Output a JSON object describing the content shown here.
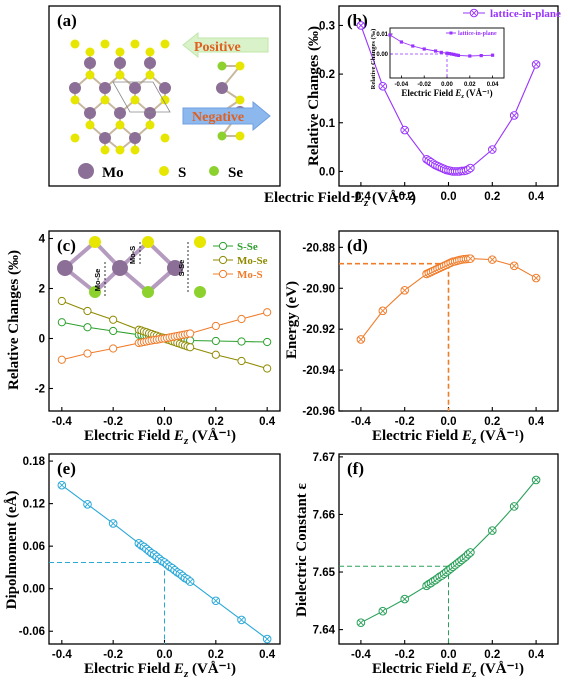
{
  "panels": {
    "a": {
      "letter": "(a)",
      "atom_labels": [
        "Mo",
        "S",
        "Se"
      ],
      "arrow_labels": [
        "Positive",
        "Negative"
      ]
    },
    "colors": {
      "purple": "#9933ff",
      "green": "#2ca02c",
      "olive": "#8f8a00",
      "orange": "#f07c2a",
      "cyan": "#29a8d8",
      "green2": "#2aa05a",
      "mo_atom": "#8c6f96",
      "s_atom": "#e6e600",
      "se_atom": "#8cd12e",
      "arrow_text": "#e06020"
    }
  },
  "chart_data": [
    {
      "id": "b",
      "letter": "(b)",
      "type": "line",
      "xlabel": "Electric Field E_z (VÅ⁻¹)",
      "ylabel": "Relative Changes (‰)",
      "xlim": [
        -0.5,
        0.5
      ],
      "ylim": [
        -0.03,
        0.34
      ],
      "xticks": [
        "-0.4",
        "-0.2",
        "0.0",
        "0.2",
        "0.4"
      ],
      "xtick_values": [
        -0.4,
        -0.2,
        0.0,
        0.2,
        0.4
      ],
      "yticks": [
        "0.0",
        "0.1",
        "0.2",
        "0.3"
      ],
      "ytick_values": [
        0.0,
        0.1,
        0.2,
        0.3
      ],
      "legend": "top-right",
      "series": [
        {
          "name": "lattice-in-plane",
          "color": "#9933ff",
          "x": [
            -0.4,
            -0.3,
            -0.2,
            -0.1,
            -0.09,
            -0.08,
            -0.07,
            -0.06,
            -0.05,
            -0.04,
            -0.03,
            -0.02,
            -0.01,
            0.0,
            0.01,
            0.02,
            0.03,
            0.04,
            0.05,
            0.06,
            0.07,
            0.08,
            0.09,
            0.1,
            0.2,
            0.3,
            0.4
          ],
          "y": [
            0.3,
            0.175,
            0.085,
            0.025,
            0.022,
            0.019,
            0.016,
            0.013,
            0.011,
            0.009,
            0.007,
            0.005,
            0.003,
            0.002,
            0.001,
            0.0,
            0.0,
            0.0,
            0.0,
            0.001,
            0.001,
            0.002,
            0.004,
            0.007,
            0.045,
            0.115,
            0.22
          ]
        }
      ],
      "inset": {
        "xlabel": "Electric Field E_z (VÅ⁻¹)",
        "ylabel": "Relative Changes (‰)",
        "xlim": [
          -0.05,
          0.05
        ],
        "ylim": [
          -0.012,
          0.013
        ],
        "xticks": [
          "-0.04",
          "-0.02",
          "0.00",
          "0.02",
          "0.04"
        ],
        "xtick_values": [
          -0.04,
          -0.02,
          0.0,
          0.02,
          0.04
        ],
        "yticks": [
          "0.00",
          "0.01"
        ],
        "ytick_values": [
          0.0,
          0.01
        ],
        "legend": "lattice-in-plane",
        "x": [
          -0.05,
          -0.04,
          -0.03,
          -0.02,
          -0.01,
          -0.005,
          0.0,
          0.002,
          0.004,
          0.006,
          0.008,
          0.01,
          0.02,
          0.03,
          0.04
        ],
        "y": [
          0.0095,
          0.006,
          0.004,
          0.0025,
          0.0015,
          0.0008,
          0.0004,
          0.0002,
          0.0,
          -0.0002,
          -0.0005,
          -0.0007,
          -0.001,
          -0.0008,
          -0.0006
        ]
      }
    },
    {
      "id": "c",
      "letter": "(c)",
      "type": "line",
      "xlabel": "Electric Field E_z (VÅ⁻¹)",
      "ylabel": "Relative Changes (‰)",
      "xlim": [
        -0.45,
        0.45
      ],
      "ylim": [
        -2.9,
        4.3
      ],
      "xticks": [
        "-0.4",
        "-0.2",
        "0.0",
        "0.2",
        "0.4"
      ],
      "xtick_values": [
        -0.4,
        -0.2,
        0.0,
        0.2,
        0.4
      ],
      "yticks": [
        "-2",
        "0",
        "2",
        "4"
      ],
      "ytick_values": [
        -2,
        0,
        2,
        4
      ],
      "legend": "top-right",
      "inset_labels": [
        "Mo-Se",
        "Mo-S",
        "S-Se"
      ],
      "series": [
        {
          "name": "S-Se",
          "color": "#2ca02c",
          "x": [
            -0.4,
            -0.3,
            -0.2,
            -0.1,
            -0.09,
            -0.08,
            -0.07,
            -0.06,
            -0.05,
            -0.04,
            -0.03,
            -0.02,
            -0.01,
            0.0,
            0.01,
            0.02,
            0.03,
            0.04,
            0.05,
            0.06,
            0.07,
            0.08,
            0.09,
            0.1,
            0.2,
            0.3,
            0.4
          ],
          "y": [
            0.65,
            0.45,
            0.3,
            0.15,
            0.14,
            0.12,
            0.11,
            0.1,
            0.09,
            0.07,
            0.06,
            0.05,
            0.03,
            0.02,
            0.01,
            0.0,
            -0.01,
            -0.02,
            -0.03,
            -0.04,
            -0.05,
            -0.06,
            -0.07,
            -0.08,
            -0.1,
            -0.12,
            -0.14
          ]
        },
        {
          "name": "Mo-Se",
          "color": "#8f8a00",
          "x": [
            -0.4,
            -0.3,
            -0.2,
            -0.1,
            -0.09,
            -0.08,
            -0.07,
            -0.06,
            -0.05,
            -0.04,
            -0.03,
            -0.02,
            -0.01,
            0.0,
            0.01,
            0.02,
            0.03,
            0.04,
            0.05,
            0.06,
            0.07,
            0.08,
            0.09,
            0.1,
            0.2,
            0.3,
            0.4
          ],
          "y": [
            1.5,
            1.1,
            0.75,
            0.35,
            0.32,
            0.28,
            0.25,
            0.21,
            0.18,
            0.14,
            0.11,
            0.07,
            0.04,
            0.0,
            -0.04,
            -0.07,
            -0.11,
            -0.14,
            -0.18,
            -0.21,
            -0.25,
            -0.28,
            -0.32,
            -0.35,
            -0.65,
            -0.9,
            -1.2
          ]
        },
        {
          "name": "Mo-S",
          "color": "#f07c2a",
          "x": [
            -0.4,
            -0.3,
            -0.2,
            -0.1,
            -0.09,
            -0.08,
            -0.07,
            -0.06,
            -0.05,
            -0.04,
            -0.03,
            -0.02,
            -0.01,
            0.0,
            0.01,
            0.02,
            0.03,
            0.04,
            0.05,
            0.06,
            0.07,
            0.08,
            0.09,
            0.1,
            0.2,
            0.3,
            0.4
          ],
          "y": [
            -0.85,
            -0.6,
            -0.4,
            -0.18,
            -0.16,
            -0.14,
            -0.12,
            -0.1,
            -0.08,
            -0.06,
            -0.05,
            -0.03,
            -0.01,
            0.0,
            0.02,
            0.04,
            0.06,
            0.08,
            0.1,
            0.12,
            0.14,
            0.16,
            0.18,
            0.2,
            0.5,
            0.78,
            1.05
          ]
        }
      ]
    },
    {
      "id": "d",
      "letter": "(d)",
      "type": "line",
      "xlabel": "Electric Field E_z (VÅ⁻¹)",
      "ylabel": "Energy (eV)",
      "xlim": [
        -0.5,
        0.5
      ],
      "ylim": [
        -20.96,
        -20.872
      ],
      "xticks": [
        "-0.4",
        "-0.2",
        "0.0",
        "0.2",
        "0.4"
      ],
      "xtick_values": [
        -0.4,
        -0.2,
        0.0,
        0.2,
        0.4
      ],
      "yticks": [
        "-20.96",
        "-20.94",
        "-20.92",
        "-20.90",
        "-20.88"
      ],
      "ytick_values": [
        -20.96,
        -20.94,
        -20.92,
        -20.9,
        -20.88
      ],
      "reference": {
        "x": 0.0,
        "y": -20.888
      },
      "series": [
        {
          "name": "",
          "color": "#f07c2a",
          "x": [
            -0.4,
            -0.3,
            -0.2,
            -0.1,
            -0.09,
            -0.08,
            -0.07,
            -0.06,
            -0.05,
            -0.04,
            -0.03,
            -0.02,
            -0.01,
            0.0,
            0.01,
            0.02,
            0.03,
            0.04,
            0.05,
            0.06,
            0.07,
            0.08,
            0.09,
            0.1,
            0.2,
            0.3,
            0.4
          ],
          "y": [
            -20.925,
            -20.911,
            -20.901,
            -20.893,
            -20.8925,
            -20.892,
            -20.8915,
            -20.891,
            -20.8905,
            -20.89,
            -20.8895,
            -20.889,
            -20.8885,
            -20.888,
            -20.8875,
            -20.887,
            -20.8868,
            -20.8865,
            -20.8862,
            -20.886,
            -20.8858,
            -20.8857,
            -20.8856,
            -20.8855,
            -20.886,
            -20.889,
            -20.895
          ]
        }
      ]
    },
    {
      "id": "e",
      "letter": "(e)",
      "type": "line",
      "xlabel": "Electric Field E_z (VÅ⁻¹)",
      "ylabel": "Dipolmoment (eÅ)",
      "xlim": [
        -0.45,
        0.45
      ],
      "ylim": [
        -0.078,
        0.19
      ],
      "xticks": [
        "-0.4",
        "-0.2",
        "0.0",
        "0.2",
        "0.4"
      ],
      "xtick_values": [
        -0.4,
        -0.2,
        0.0,
        0.2,
        0.4
      ],
      "yticks": [
        "-0.06",
        "0.00",
        "0.06",
        "0.12",
        "0.18"
      ],
      "ytick_values": [
        -0.06,
        0.0,
        0.06,
        0.12,
        0.18
      ],
      "reference": {
        "x": 0.0,
        "y": 0.037
      },
      "series": [
        {
          "name": "",
          "color": "#29a8d8",
          "x": [
            -0.4,
            -0.3,
            -0.2,
            -0.1,
            -0.09,
            -0.08,
            -0.07,
            -0.06,
            -0.05,
            -0.04,
            -0.03,
            -0.02,
            -0.01,
            0.0,
            0.01,
            0.02,
            0.03,
            0.04,
            0.05,
            0.06,
            0.07,
            0.08,
            0.09,
            0.1,
            0.2,
            0.3,
            0.4
          ],
          "y": [
            0.146,
            0.119,
            0.092,
            0.064,
            0.061,
            0.059,
            0.056,
            0.053,
            0.05,
            0.048,
            0.045,
            0.042,
            0.039,
            0.037,
            0.034,
            0.031,
            0.029,
            0.026,
            0.023,
            0.021,
            0.018,
            0.015,
            0.013,
            0.01,
            -0.017,
            -0.044,
            -0.071
          ]
        }
      ]
    },
    {
      "id": "f",
      "letter": "(f)",
      "type": "line",
      "xlabel": "Electric Field E_z (VÅ⁻¹)",
      "ylabel": "Dielectric Constant ε",
      "xlim": [
        -0.5,
        0.5
      ],
      "ylim": [
        7.6375,
        7.6705
      ],
      "xticks": [
        "-0.4",
        "-0.2",
        "0.0",
        "0.2",
        "0.4"
      ],
      "xtick_values": [
        -0.4,
        -0.2,
        0.0,
        0.2,
        0.4
      ],
      "yticks": [
        "7.64",
        "7.65",
        "7.66",
        "7.67"
      ],
      "ytick_values": [
        7.64,
        7.65,
        7.66,
        7.67
      ],
      "reference": {
        "x": 0.0,
        "y": 7.651
      },
      "series": [
        {
          "name": "",
          "color": "#2aa05a",
          "x": [
            -0.4,
            -0.3,
            -0.2,
            -0.1,
            -0.09,
            -0.08,
            -0.07,
            -0.06,
            -0.05,
            -0.04,
            -0.03,
            -0.02,
            -0.01,
            0.0,
            0.01,
            0.02,
            0.03,
            0.04,
            0.05,
            0.06,
            0.07,
            0.08,
            0.09,
            0.1,
            0.2,
            0.3,
            0.4
          ],
          "y": [
            7.6412,
            7.6432,
            7.6453,
            7.6476,
            7.6479,
            7.6481,
            7.6484,
            7.6486,
            7.6489,
            7.6492,
            7.6494,
            7.6497,
            7.65,
            7.6503,
            7.6506,
            7.6509,
            7.6512,
            7.6515,
            7.6518,
            7.6521,
            7.6524,
            7.6527,
            7.6531,
            7.6534,
            7.6572,
            7.6614,
            7.666
          ]
        }
      ]
    }
  ]
}
